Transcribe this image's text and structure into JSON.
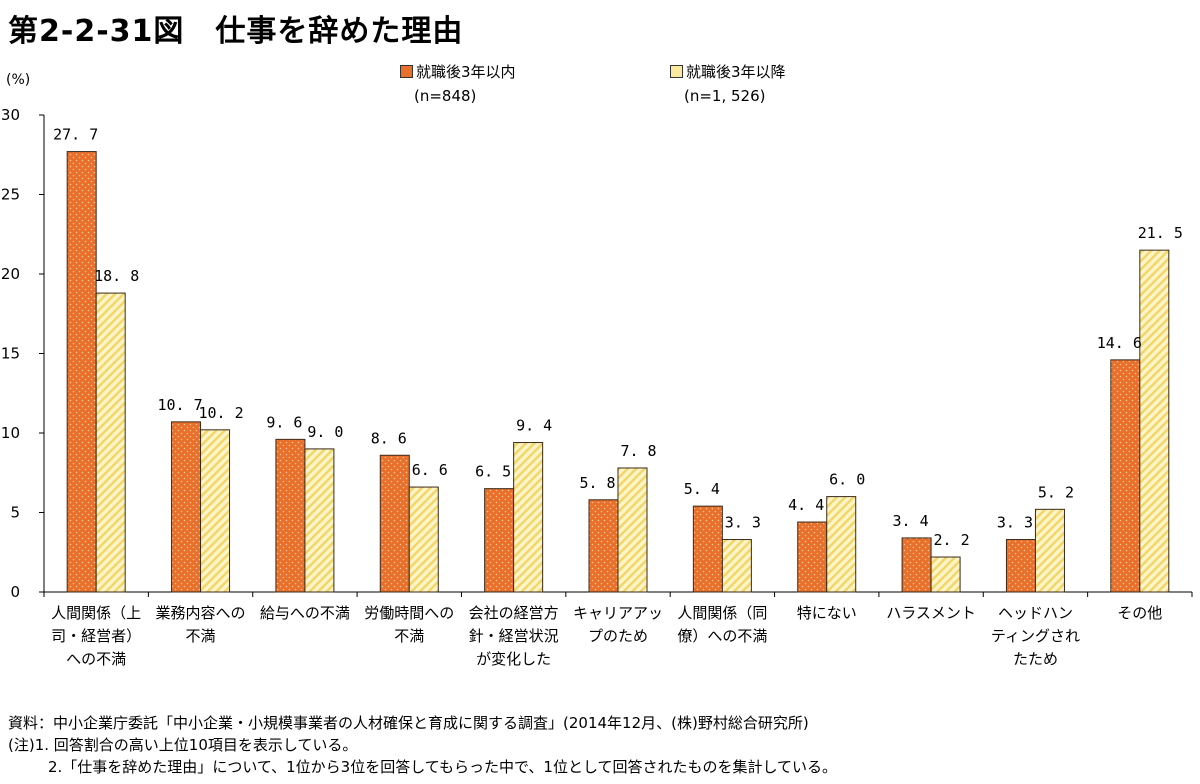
{
  "title": "第2-2-31図　仕事を辞めた理由",
  "unit_label": "(%)",
  "legend": [
    {
      "name": "就職後3年以内",
      "n": "(n=848)",
      "color": "#e8702a"
    },
    {
      "name": "就職後3年以降",
      "n": "(n=1, 526)",
      "color": "#fbe9a0"
    }
  ],
  "chart_data": {
    "type": "bar",
    "ylim": [
      0,
      30
    ],
    "yticks": [
      0,
      5,
      10,
      15,
      20,
      25,
      30
    ],
    "categories": [
      [
        "人間関係（上",
        "司・経営者）",
        "への不満"
      ],
      [
        "業務内容への",
        "不満"
      ],
      [
        "給与への不満"
      ],
      [
        "労働時間への",
        "不満"
      ],
      [
        "会社の経営方",
        "針・経営状況",
        "が変化した"
      ],
      [
        "キャリアアッ",
        "プのため"
      ],
      [
        "人間関係（同",
        "僚）への不満"
      ],
      [
        "特にない"
      ],
      [
        "ハラスメント"
      ],
      [
        "ヘッドハン",
        "ティングされ",
        "たため"
      ],
      [
        "その他"
      ]
    ],
    "series": [
      {
        "name": "就職後3年以内",
        "values": [
          27.7,
          10.7,
          9.6,
          8.6,
          6.5,
          5.8,
          5.4,
          4.4,
          3.4,
          3.3,
          14.6
        ]
      },
      {
        "name": "就職後3年以降",
        "values": [
          18.8,
          10.2,
          9.0,
          6.6,
          9.4,
          7.8,
          3.3,
          6.0,
          2.2,
          5.2,
          21.5
        ]
      }
    ]
  },
  "notes": [
    "資料：中小企業庁委託「中小企業・小規模事業者の人材確保と育成に関する調査」(2014年12月、(株)野村総合研究所)",
    "(注)1. 回答割合の高い上位10項目を表示している。",
    "2.「仕事を辞めた理由」について、1位から3位を回答してもらった中で、1位として回答されたものを集計している。"
  ]
}
